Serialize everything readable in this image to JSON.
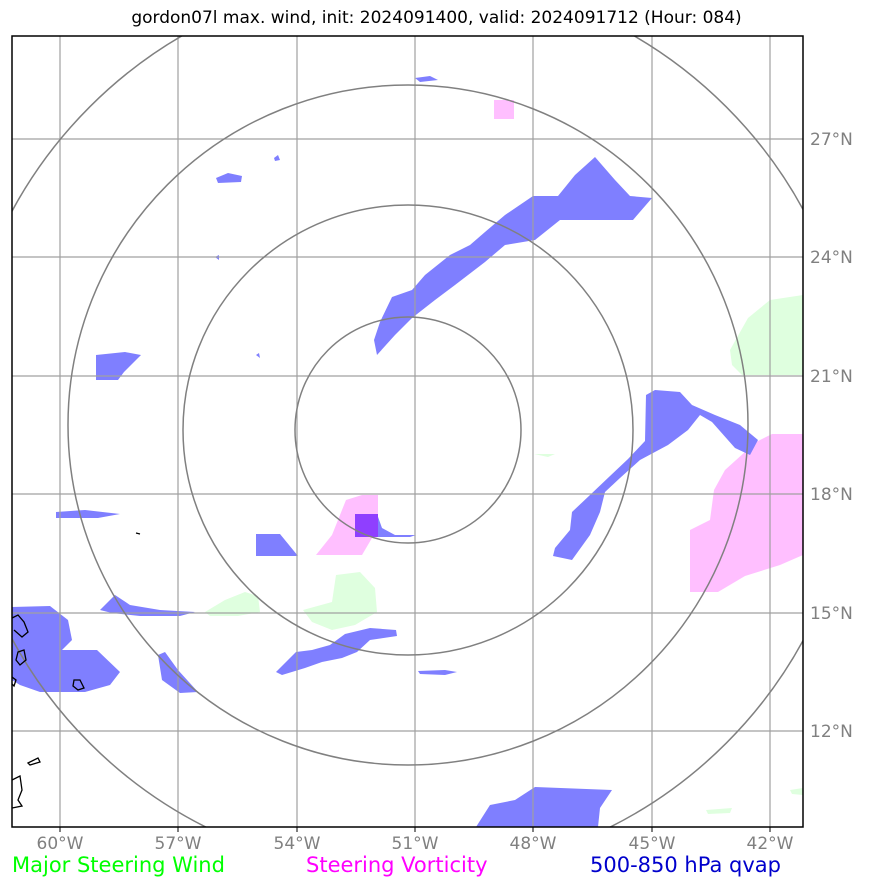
{
  "title": "gordon07l max. wind, init: 2024091400, valid: 2024091712 (Hour: 084)",
  "longitude_ticks": [
    "60°W",
    "57°W",
    "54°W",
    "51°W",
    "48°W",
    "45°W",
    "42°W"
  ],
  "latitude_ticks": [
    "27°N",
    "24°N",
    "21°N",
    "18°N",
    "15°N",
    "12°N"
  ],
  "legend": {
    "wind": {
      "label": "Major Steering Wind",
      "color": "#00ff00"
    },
    "vorticity": {
      "label": "Steering Vorticity",
      "color": "#ff00ff"
    },
    "qvap": {
      "label": "500-850 hPa qvap",
      "color": "#0000cc"
    }
  },
  "colors": {
    "qvap_fill": "#7f7fff",
    "vorticity_fill": "#ffbfff",
    "wind_fill": "#dfffdf",
    "range_rings": "#808080",
    "gridlines": "#a0a0a0",
    "coastline": "#000000"
  }
}
